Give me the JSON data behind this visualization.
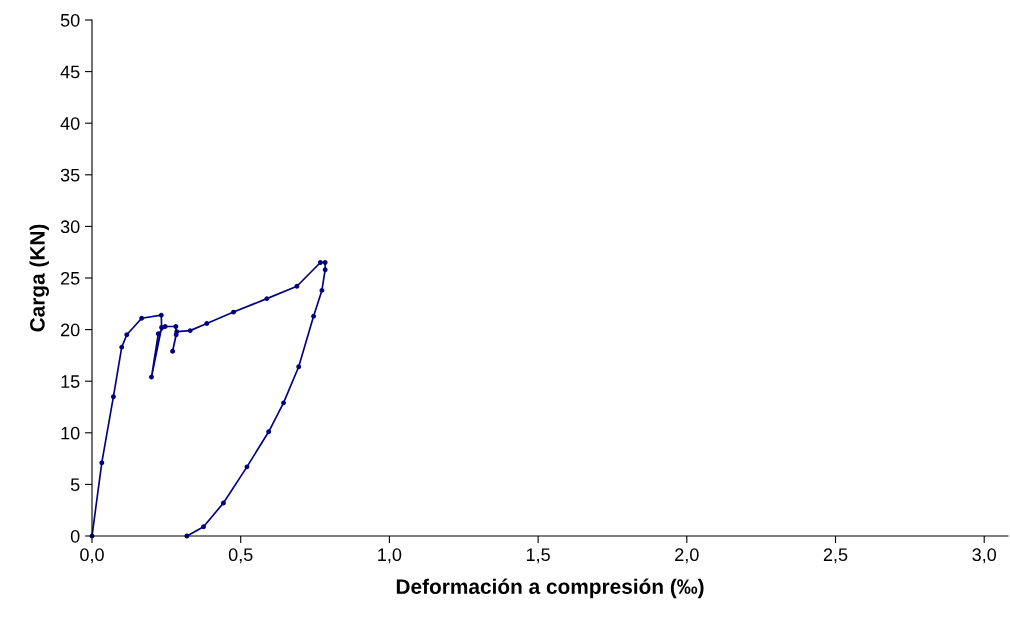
{
  "chart_data": {
    "type": "line",
    "xlabel": "Deformación a compresión (‰)",
    "ylabel": "Carga (KN)",
    "xlim": [
      0,
      3.08
    ],
    "ylim": [
      0,
      50
    ],
    "xticks": [
      {
        "value": 0,
        "label": "0,0"
      },
      {
        "value": 0.5,
        "label": "0,5"
      },
      {
        "value": 1,
        "label": "1,0"
      },
      {
        "value": 1.5,
        "label": "1,5"
      },
      {
        "value": 2,
        "label": "2,0"
      },
      {
        "value": 2.5,
        "label": "2,5"
      },
      {
        "value": 3,
        "label": "3,0"
      }
    ],
    "yticks": [
      0,
      5,
      10,
      15,
      20,
      25,
      30,
      35,
      40,
      45,
      50
    ],
    "grid": false,
    "legend": false,
    "marker": "circle",
    "line_style": "solid",
    "series": [
      {
        "color": "#000080",
        "x": [
          0,
          0.033,
          0.072,
          0.1,
          0.117,
          0.167,
          0.233,
          0.234,
          0.2,
          0.223,
          0.246,
          0.282,
          0.283,
          0.271,
          0.285,
          0.33,
          0.386,
          0.476,
          0.588,
          0.689,
          0.768,
          0.784,
          0.784,
          0.773,
          0.745,
          0.695,
          0.644,
          0.594,
          0.521,
          0.442,
          0.375,
          0.319
        ],
        "values": [
          0,
          7.1,
          13.5,
          18.3,
          19.5,
          21.1,
          21.4,
          20.2,
          15.4,
          19.6,
          20.3,
          20.3,
          19.5,
          17.9,
          19.8,
          19.9,
          20.6,
          21.7,
          23.0,
          24.2,
          26.5,
          26.5,
          25.8,
          23.8,
          21.3,
          16.4,
          12.9,
          10.1,
          6.7,
          3.2,
          0.9,
          0
        ]
      }
    ]
  }
}
